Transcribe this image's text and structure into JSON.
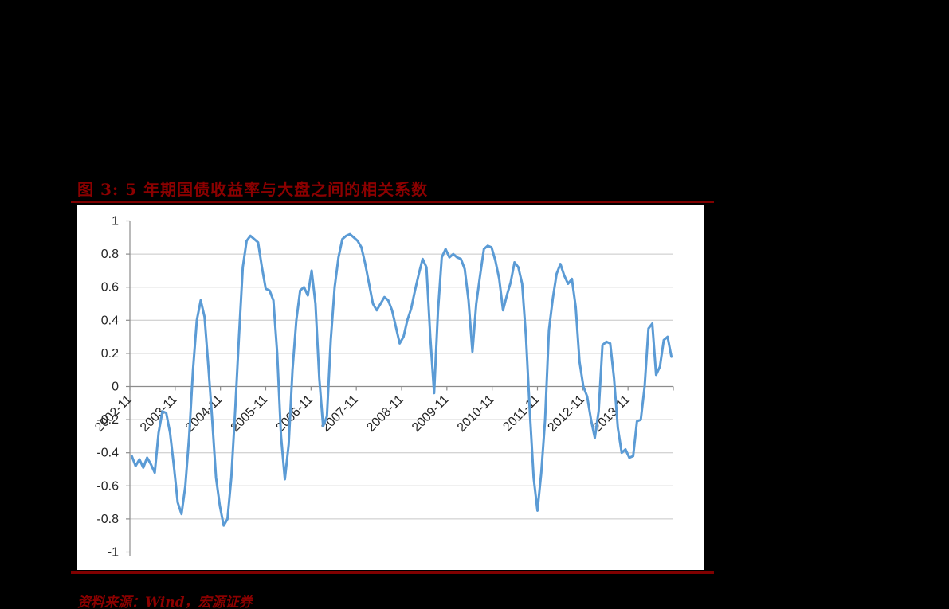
{
  "page": {
    "background_color": "#000000"
  },
  "figure": {
    "title": "图 3:  5 年期国债收益率与大盘之间的相关系数",
    "source": "资料来源：Wind，宏源证券",
    "accent_color": "#8B0000"
  },
  "chart_data": {
    "type": "line",
    "title": "5 年期国债收益率与大盘之间的相关系数",
    "series_name": "相关系数",
    "x_frequency": "monthly",
    "x_start": "2002-11",
    "x_tick_labels": [
      "2002-11",
      "2003-11",
      "2004-11",
      "2005-11",
      "2006-11",
      "2007-11",
      "2008-11",
      "2009-11",
      "2010-11",
      "2011-11",
      "2012-11",
      "2013-11"
    ],
    "y_tick_labels": [
      "1",
      "0.8",
      "0.6",
      "0.4",
      "0.2",
      "0",
      "-0.2",
      "-0.4",
      "-0.6",
      "-0.8",
      "-1"
    ],
    "ylim": [
      -1,
      1
    ],
    "grid": true,
    "legend": "none",
    "line_color": "#5B9BD5",
    "gridline_color": "#C6C6C6",
    "axis_color": "#8C8C8C",
    "tick_label_color": "#262626",
    "plot_background": "#FFFFFF",
    "values": [
      -0.42,
      -0.48,
      -0.44,
      -0.49,
      -0.43,
      -0.47,
      -0.52,
      -0.28,
      -0.15,
      -0.16,
      -0.28,
      -0.48,
      -0.7,
      -0.77,
      -0.6,
      -0.3,
      0.1,
      0.4,
      0.52,
      0.42,
      0.12,
      -0.2,
      -0.55,
      -0.72,
      -0.84,
      -0.8,
      -0.55,
      -0.15,
      0.3,
      0.72,
      0.88,
      0.91,
      0.89,
      0.87,
      0.72,
      0.59,
      0.58,
      0.52,
      0.2,
      -0.3,
      -0.56,
      -0.35,
      0.1,
      0.4,
      0.58,
      0.6,
      0.55,
      0.7,
      0.5,
      0.05,
      -0.24,
      -0.18,
      0.28,
      0.6,
      0.78,
      0.89,
      0.91,
      0.92,
      0.9,
      0.88,
      0.84,
      0.74,
      0.62,
      0.5,
      0.46,
      0.5,
      0.54,
      0.52,
      0.46,
      0.36,
      0.26,
      0.3,
      0.4,
      0.47,
      0.58,
      0.68,
      0.77,
      0.72,
      0.3,
      -0.04,
      0.45,
      0.78,
      0.83,
      0.78,
      0.8,
      0.78,
      0.77,
      0.71,
      0.52,
      0.21,
      0.5,
      0.67,
      0.83,
      0.85,
      0.84,
      0.76,
      0.65,
      0.46,
      0.55,
      0.63,
      0.75,
      0.72,
      0.62,
      0.3,
      -0.15,
      -0.55,
      -0.75,
      -0.52,
      -0.2,
      0.34,
      0.53,
      0.68,
      0.74,
      0.67,
      0.62,
      0.65,
      0.48,
      0.15,
      0.0,
      -0.06,
      -0.2,
      -0.31,
      -0.15,
      0.25,
      0.27,
      0.26,
      0.05,
      -0.25,
      -0.4,
      -0.38,
      -0.43,
      -0.42,
      -0.21,
      -0.2,
      0.0,
      0.35,
      0.38,
      0.07,
      0.12,
      0.28,
      0.3,
      0.18
    ]
  }
}
